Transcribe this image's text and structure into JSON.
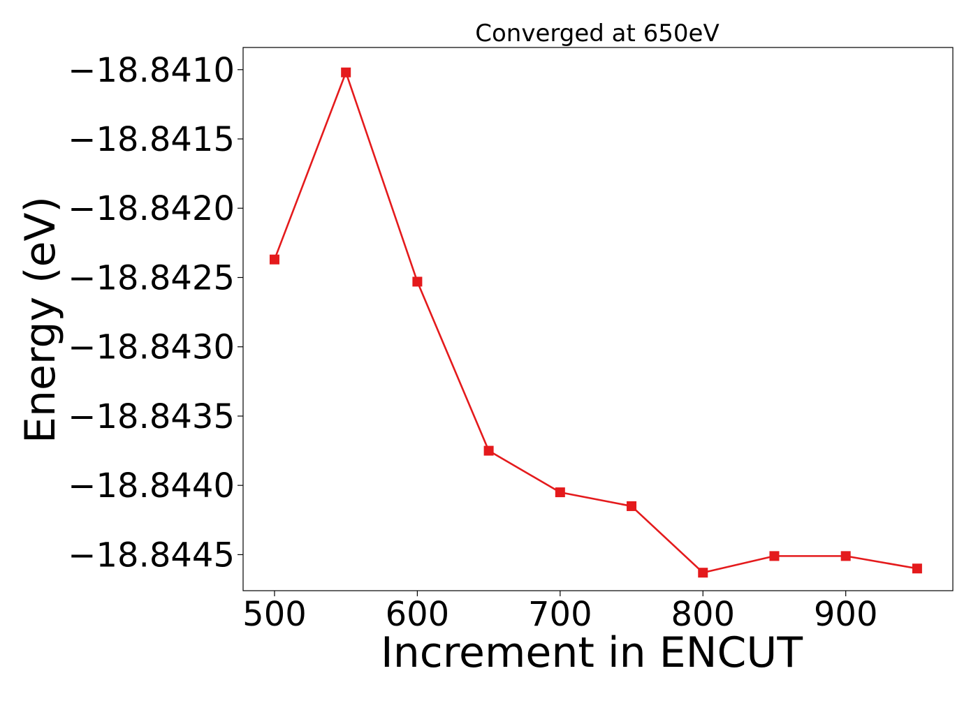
{
  "chart_data": {
    "type": "line",
    "title": "Converged at 650eV",
    "xlabel": "Increment in ENCUT",
    "ylabel": "Energy (eV)",
    "x": [
      500,
      550,
      600,
      650,
      700,
      750,
      800,
      850,
      900,
      950
    ],
    "series": [
      {
        "values": [
          -18.84237,
          -18.84102,
          -18.84253,
          -18.84375,
          -18.84405,
          -18.84415,
          -18.84463,
          -18.84451,
          -18.84451,
          -18.8446
        ],
        "color": "#e41a1c",
        "marker": "square"
      }
    ],
    "xlim": [
      478,
      975
    ],
    "ylim": [
      -18.84476,
      -18.84084
    ],
    "xticks": [
      500,
      600,
      700,
      800,
      900
    ],
    "xtick_labels": [
      "500",
      "600",
      "700",
      "800",
      "900"
    ],
    "yticks": [
      -18.841,
      -18.8415,
      -18.842,
      -18.8425,
      -18.843,
      -18.8435,
      -18.844,
      -18.8445
    ],
    "ytick_labels": [
      "−18.8410",
      "−18.8415",
      "−18.8420",
      "−18.8425",
      "−18.8430",
      "−18.8435",
      "−18.8440",
      "−18.8445"
    ],
    "grid": false,
    "legend": "none"
  }
}
